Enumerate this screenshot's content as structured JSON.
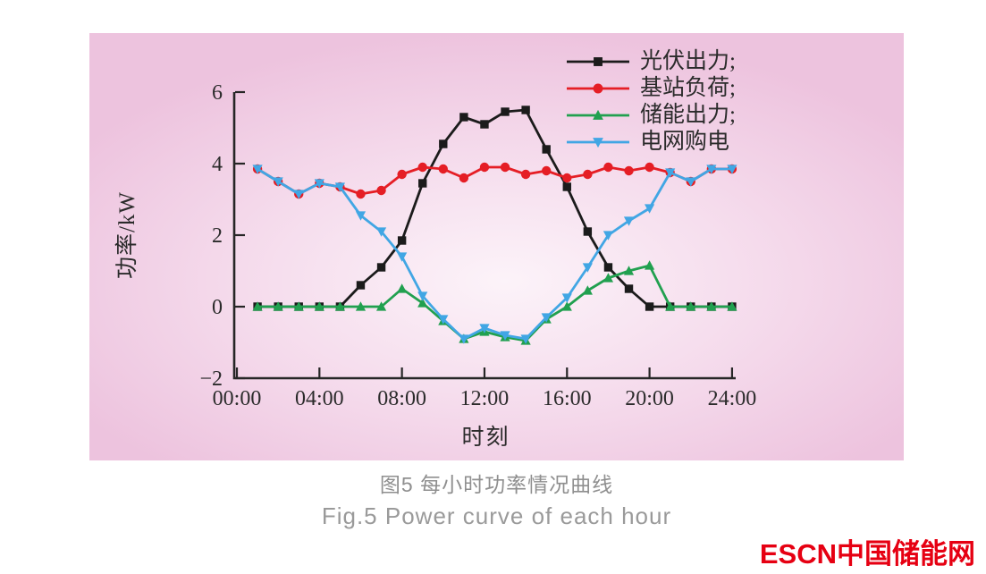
{
  "figure": {
    "caption_zh": "图5  每小时功率情况曲线",
    "caption_en": "Fig.5  Power curve of each hour",
    "watermark": "ESCN中国储能网",
    "watermark_color": "#e60012",
    "panel_background": "#f0cce2"
  },
  "chart_data": {
    "type": "line",
    "title": "",
    "xlabel": "时刻",
    "ylabel": "功率/kW",
    "xlim_hours": [
      0,
      24
    ],
    "ylim": [
      -2,
      6
    ],
    "grid": false,
    "legend_position": "top-right",
    "x_ticks": [
      "00:00",
      "04:00",
      "08:00",
      "12:00",
      "16:00",
      "20:00",
      "24:00"
    ],
    "x_tick_hours": [
      0,
      4,
      8,
      12,
      16,
      20,
      24
    ],
    "y_ticks": [
      -2,
      0,
      2,
      4,
      6
    ],
    "x_hours": [
      1,
      2,
      3,
      4,
      5,
      6,
      7,
      8,
      9,
      10,
      11,
      12,
      13,
      14,
      15,
      16,
      17,
      18,
      19,
      20,
      21,
      22,
      23,
      24
    ],
    "series": [
      {
        "id": "pv",
        "name": "光伏出力;",
        "color": "#1b1b1b",
        "marker": "square",
        "values": [
          0,
          0,
          0,
          0,
          0,
          0.6,
          1.1,
          1.85,
          3.45,
          4.55,
          5.3,
          5.1,
          5.45,
          5.5,
          4.4,
          3.35,
          2.1,
          1.1,
          0.5,
          0,
          0,
          0,
          0,
          0
        ]
      },
      {
        "id": "load",
        "name": "基站负荷;",
        "color": "#e51e25",
        "marker": "circle",
        "values": [
          3.85,
          3.5,
          3.15,
          3.45,
          3.35,
          3.15,
          3.25,
          3.7,
          3.9,
          3.85,
          3.6,
          3.9,
          3.9,
          3.7,
          3.8,
          3.6,
          3.7,
          3.9,
          3.8,
          3.9,
          3.75,
          3.5,
          3.85,
          3.85
        ]
      },
      {
        "id": "storage",
        "name": "储能出力;",
        "color": "#21a04f",
        "marker": "triangle-up",
        "values": [
          0,
          0,
          0,
          0,
          0,
          0,
          0,
          0.5,
          0.1,
          -0.4,
          -0.9,
          -0.7,
          -0.85,
          -0.95,
          -0.35,
          0,
          0.45,
          0.8,
          1,
          1.15,
          0,
          0,
          0,
          0
        ]
      },
      {
        "id": "grid",
        "name": "电网购电",
        "color": "#41a6e4",
        "marker": "triangle-down",
        "values": [
          3.85,
          3.5,
          3.15,
          3.45,
          3.35,
          2.55,
          2.1,
          1.4,
          0.3,
          -0.35,
          -0.9,
          -0.6,
          -0.8,
          -0.9,
          -0.3,
          0.25,
          1.1,
          2,
          2.4,
          2.75,
          3.75,
          3.5,
          3.85,
          3.85
        ]
      }
    ]
  }
}
